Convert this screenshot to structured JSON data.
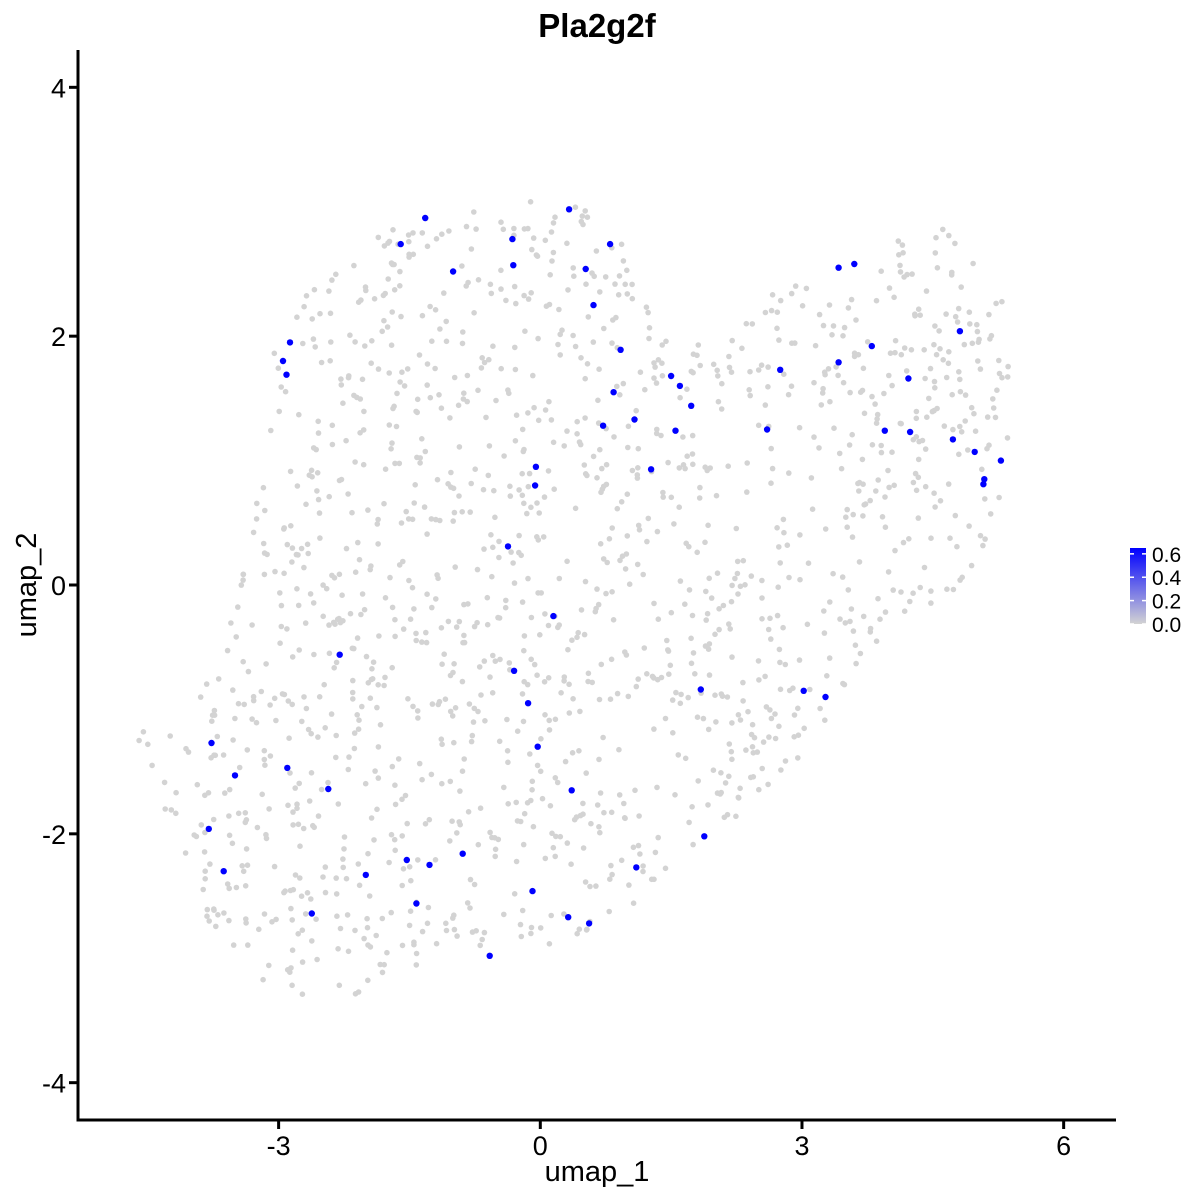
{
  "chart_data": {
    "type": "scatter",
    "title": "Pla2g2f",
    "xlabel": "umap_1",
    "ylabel": "umap_2",
    "xlim": [
      -5.3,
      6.6
    ],
    "ylim": [
      -4.3,
      4.3
    ],
    "x_ticks": [
      -3,
      0,
      3,
      6
    ],
    "y_ticks": [
      -4,
      -2,
      0,
      2,
      4
    ],
    "x_tick_labels": [
      "-3",
      "0",
      "3",
      "6"
    ],
    "y_tick_labels": [
      "-4",
      "-2",
      "0",
      "2",
      "4"
    ],
    "grid": false,
    "legend": {
      "placement": "right",
      "title": "",
      "color_low": "#d3d3d3",
      "color_high": "#0000ff",
      "range": [
        0.0,
        0.65
      ],
      "breaks": [
        0.0,
        0.2,
        0.4,
        0.6
      ],
      "break_labels": [
        "0.0",
        "0.2",
        "0.4",
        "0.6"
      ]
    },
    "colors": {
      "background_points": "#d3d3d3",
      "expressing_points": "#0000ff"
    },
    "background_cells_approx_count": 1500,
    "expressing_cells": [
      {
        "x": -1.6,
        "y": 2.74,
        "value": 0.65
      },
      {
        "x": -1.32,
        "y": 2.95,
        "value": 0.65
      },
      {
        "x": -1.0,
        "y": 2.52,
        "value": 0.65
      },
      {
        "x": -0.32,
        "y": 2.78,
        "value": 0.65
      },
      {
        "x": -0.31,
        "y": 2.57,
        "value": 0.65
      },
      {
        "x": 0.33,
        "y": 3.02,
        "value": 0.65
      },
      {
        "x": 0.52,
        "y": 2.54,
        "value": 0.65
      },
      {
        "x": 0.61,
        "y": 2.25,
        "value": 0.65
      },
      {
        "x": 0.8,
        "y": 2.74,
        "value": 0.65
      },
      {
        "x": -2.87,
        "y": 1.95,
        "value": 0.65
      },
      {
        "x": -2.95,
        "y": 1.8,
        "value": 0.65
      },
      {
        "x": -2.91,
        "y": 1.69,
        "value": 0.65
      },
      {
        "x": 0.92,
        "y": 1.89,
        "value": 0.65
      },
      {
        "x": 0.84,
        "y": 1.55,
        "value": 0.65
      },
      {
        "x": 0.72,
        "y": 1.28,
        "value": 0.65
      },
      {
        "x": 1.08,
        "y": 1.33,
        "value": 0.65
      },
      {
        "x": 1.5,
        "y": 1.68,
        "value": 0.65
      },
      {
        "x": 1.6,
        "y": 1.6,
        "value": 0.65
      },
      {
        "x": 1.73,
        "y": 1.44,
        "value": 0.65
      },
      {
        "x": 1.55,
        "y": 1.24,
        "value": 0.65
      },
      {
        "x": 1.27,
        "y": 0.93,
        "value": 0.65
      },
      {
        "x": -0.05,
        "y": 0.95,
        "value": 0.65
      },
      {
        "x": -0.06,
        "y": 0.8,
        "value": 0.65
      },
      {
        "x": -0.37,
        "y": 0.31,
        "value": 0.65
      },
      {
        "x": 2.6,
        "y": 1.25,
        "value": 0.65
      },
      {
        "x": 2.75,
        "y": 1.73,
        "value": 0.65
      },
      {
        "x": 3.42,
        "y": 2.55,
        "value": 0.65
      },
      {
        "x": 3.6,
        "y": 2.58,
        "value": 0.65
      },
      {
        "x": 3.42,
        "y": 1.79,
        "value": 0.65
      },
      {
        "x": 3.8,
        "y": 1.92,
        "value": 0.65
      },
      {
        "x": 4.22,
        "y": 1.66,
        "value": 0.65
      },
      {
        "x": 4.81,
        "y": 2.04,
        "value": 0.65
      },
      {
        "x": 3.95,
        "y": 1.24,
        "value": 0.65
      },
      {
        "x": 4.24,
        "y": 1.23,
        "value": 0.65
      },
      {
        "x": 4.73,
        "y": 1.17,
        "value": 0.65
      },
      {
        "x": 4.98,
        "y": 1.07,
        "value": 0.65
      },
      {
        "x": 5.28,
        "y": 1.0,
        "value": 0.65
      },
      {
        "x": 5.09,
        "y": 0.85,
        "value": 0.65
      },
      {
        "x": 5.08,
        "y": 0.81,
        "value": 0.65
      },
      {
        "x": 0.15,
        "y": -0.25,
        "value": 0.65
      },
      {
        "x": -2.3,
        "y": -0.56,
        "value": 0.65
      },
      {
        "x": -0.3,
        "y": -0.69,
        "value": 0.65
      },
      {
        "x": -0.14,
        "y": -0.95,
        "value": 0.65
      },
      {
        "x": -0.03,
        "y": -1.3,
        "value": 0.65
      },
      {
        "x": 1.84,
        "y": -0.84,
        "value": 0.65
      },
      {
        "x": 3.02,
        "y": -0.85,
        "value": 0.65
      },
      {
        "x": 3.27,
        "y": -0.9,
        "value": 0.65
      },
      {
        "x": -3.77,
        "y": -1.27,
        "value": 0.65
      },
      {
        "x": -3.5,
        "y": -1.53,
        "value": 0.65
      },
      {
        "x": -2.9,
        "y": -1.47,
        "value": 0.65
      },
      {
        "x": -2.43,
        "y": -1.64,
        "value": 0.65
      },
      {
        "x": 0.36,
        "y": -1.65,
        "value": 0.65
      },
      {
        "x": -3.8,
        "y": -1.96,
        "value": 0.65
      },
      {
        "x": -3.63,
        "y": -2.3,
        "value": 0.65
      },
      {
        "x": -2.0,
        "y": -2.33,
        "value": 0.65
      },
      {
        "x": -1.53,
        "y": -2.21,
        "value": 0.65
      },
      {
        "x": -1.27,
        "y": -2.25,
        "value": 0.65
      },
      {
        "x": -0.89,
        "y": -2.16,
        "value": 0.65
      },
      {
        "x": 1.1,
        "y": -2.27,
        "value": 0.65
      },
      {
        "x": 1.88,
        "y": -2.02,
        "value": 0.65
      },
      {
        "x": -2.62,
        "y": -2.64,
        "value": 0.65
      },
      {
        "x": -1.42,
        "y": -2.56,
        "value": 0.65
      },
      {
        "x": -0.09,
        "y": -2.46,
        "value": 0.65
      },
      {
        "x": 0.32,
        "y": -2.67,
        "value": 0.65
      },
      {
        "x": 0.56,
        "y": -2.72,
        "value": 0.65
      },
      {
        "x": -0.58,
        "y": -2.98,
        "value": 0.65
      }
    ]
  }
}
